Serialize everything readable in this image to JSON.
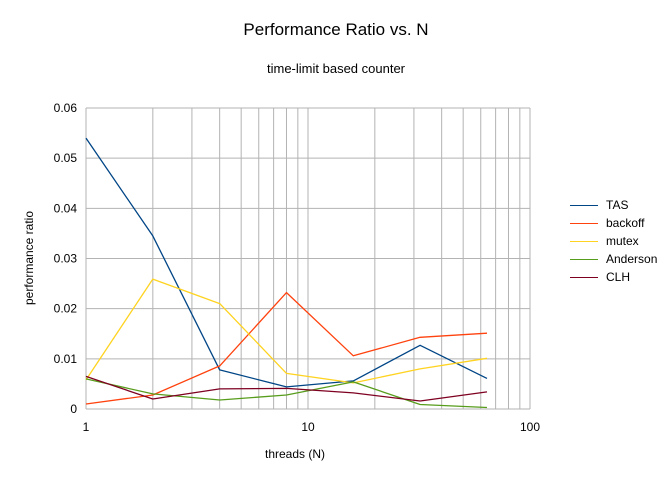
{
  "chart_data": {
    "type": "line",
    "title": "Performance Ratio vs. N",
    "subtitle": "time-limit based counter",
    "xlabel": "threads (N)",
    "ylabel": "performance ratio",
    "xscale": "log",
    "xlim": [
      1,
      100
    ],
    "ylim": [
      0,
      0.06
    ],
    "x_tick_labels": [
      "1",
      "10",
      "100"
    ],
    "y_ticks": [
      0,
      0.01,
      0.02,
      0.03,
      0.04,
      0.05,
      0.06
    ],
    "y_tick_labels": [
      "0",
      "0.01",
      "0.02",
      "0.03",
      "0.04",
      "0.05",
      "0.06"
    ],
    "grid": true,
    "legend_position": "right",
    "x": [
      1,
      2,
      4,
      8,
      16,
      32,
      64
    ],
    "series": [
      {
        "name": "TAS",
        "color": "#004586",
        "values": [
          0.054,
          0.0345,
          0.0078,
          0.0044,
          0.0056,
          0.0127,
          0.0061
        ]
      },
      {
        "name": "backoff",
        "color": "#ff420e",
        "values": [
          0.001,
          0.0028,
          0.0086,
          0.0232,
          0.0106,
          0.0143,
          0.0151
        ]
      },
      {
        "name": "mutex",
        "color": "#ffd320",
        "values": [
          0.0058,
          0.0259,
          0.021,
          0.0071,
          0.0052,
          0.008,
          0.0101
        ]
      },
      {
        "name": "Anderson",
        "color": "#579d1c",
        "values": [
          0.006,
          0.003,
          0.0018,
          0.0028,
          0.0054,
          0.0009,
          0.0003
        ]
      },
      {
        "name": "CLH",
        "color": "#7e0021",
        "values": [
          0.0065,
          0.002,
          0.004,
          0.0041,
          0.0032,
          0.0016,
          0.0034
        ]
      }
    ]
  }
}
